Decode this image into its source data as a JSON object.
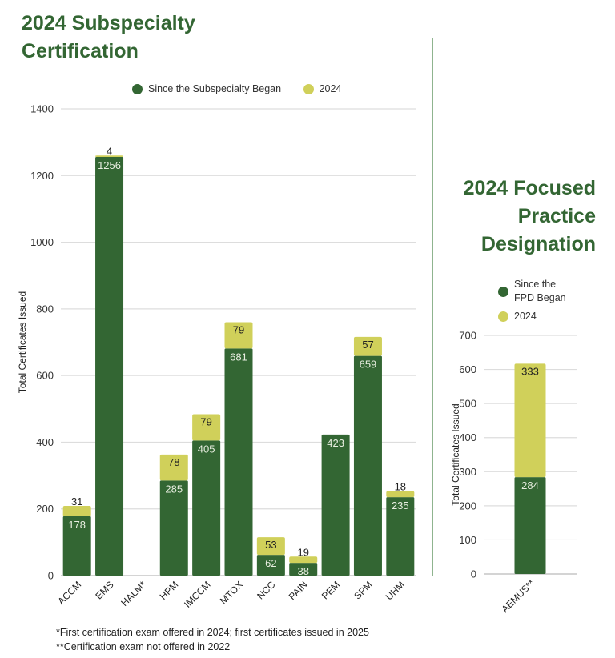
{
  "titles": {
    "left": [
      "2024 Subspecialty",
      "Certification"
    ],
    "right": [
      "2024 Focused",
      "Practice",
      "Designation"
    ]
  },
  "colors": {
    "since_began": "#336633",
    "year_2024": "#d0d05a",
    "title": "#336633",
    "grid": "#dddddd"
  },
  "legend_left": [
    {
      "label": "Since the Subspecialty Began",
      "color": "#336633"
    },
    {
      "label": "2024",
      "color": "#d0d05a"
    }
  ],
  "legend_right": [
    {
      "label_lines": [
        "Since the",
        "FPD Began"
      ],
      "color": "#336633"
    },
    {
      "label": "2024",
      "color": "#d0d05a"
    }
  ],
  "footnotes": [
    "*First certification exam offered in 2024; first certificates issued in 2025",
    "**Certification exam not offered in 2022"
  ],
  "chart_data": [
    {
      "type": "bar",
      "stacked": true,
      "title": "2024 Subspecialty Certification",
      "xlabel": "",
      "ylabel": "Total Certificates Issued",
      "ylim": [
        0,
        1400
      ],
      "yticks": [
        0,
        200,
        400,
        600,
        800,
        1000,
        1200,
        1400
      ],
      "grid": true,
      "legend_position": "top",
      "categories": [
        "ACCM",
        "EMS",
        "HALM*",
        "HPM",
        "IMCCM",
        "MTOX",
        "NCC",
        "PAIN",
        "PEM",
        "SPM",
        "UHM"
      ],
      "series": [
        {
          "name": "Since the Subspecialty Began",
          "values": [
            178,
            1256,
            0,
            285,
            405,
            681,
            62,
            38,
            423,
            659,
            235
          ]
        },
        {
          "name": "2024",
          "values": [
            31,
            4,
            0,
            78,
            79,
            79,
            53,
            19,
            0,
            57,
            18
          ]
        }
      ]
    },
    {
      "type": "bar",
      "stacked": true,
      "title": "2024 Focused Practice Designation",
      "xlabel": "",
      "ylabel": "Total Certificates Issued",
      "ylim": [
        0,
        700
      ],
      "yticks": [
        0,
        100,
        200,
        300,
        400,
        500,
        600,
        700
      ],
      "grid": true,
      "legend_position": "top",
      "categories": [
        "AEMUS**"
      ],
      "series": [
        {
          "name": "Since the FPD Began",
          "values": [
            284
          ]
        },
        {
          "name": "2024",
          "values": [
            333
          ]
        }
      ]
    }
  ]
}
